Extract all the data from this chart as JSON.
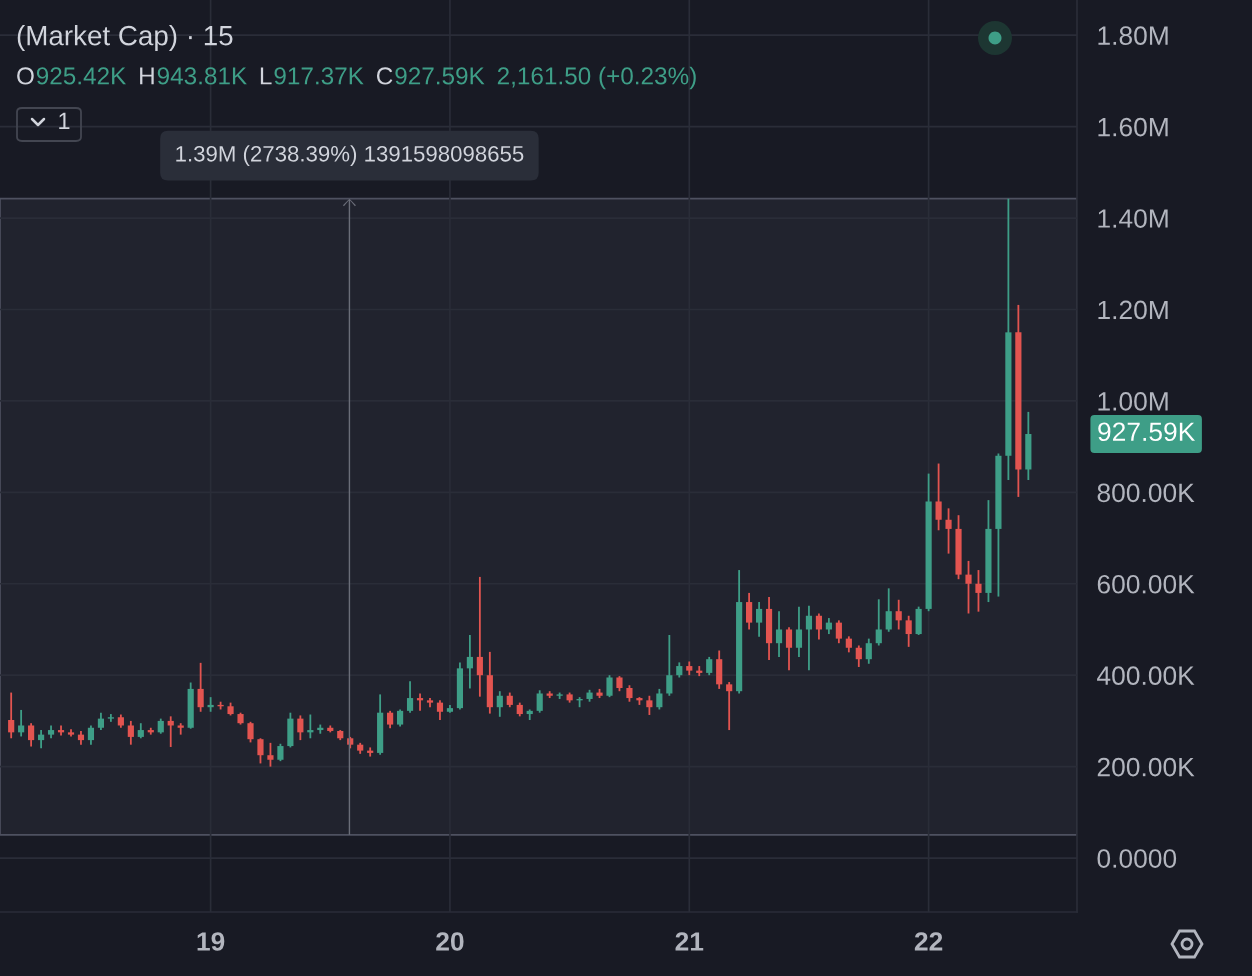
{
  "chart_data": {
    "type": "candlestick",
    "title": "(Market Cap) · 15",
    "x": [
      18.1667,
      18.2083,
      18.25,
      18.2917,
      18.3333,
      18.375,
      18.4167,
      18.4583,
      18.5,
      18.5417,
      18.5833,
      18.625,
      18.6667,
      18.7083,
      18.75,
      18.7917,
      18.8333,
      18.875,
      18.9167,
      18.9583,
      19,
      19.0417,
      19.0833,
      19.125,
      19.1667,
      19.2083,
      19.25,
      19.2917,
      19.3333,
      19.375,
      19.4167,
      19.4583,
      19.5,
      19.5417,
      19.5833,
      19.625,
      19.6667,
      19.7083,
      19.75,
      19.7917,
      19.8333,
      19.875,
      19.9167,
      19.9583,
      20,
      20.0417,
      20.0833,
      20.125,
      20.1667,
      20.2083,
      20.25,
      20.2917,
      20.3333,
      20.375,
      20.4167,
      20.4583,
      20.5,
      20.5417,
      20.5833,
      20.625,
      20.6667,
      20.7083,
      20.75,
      20.7917,
      20.8333,
      20.875,
      20.9167,
      20.9583,
      21,
      21.0417,
      21.0833,
      21.125,
      21.1667,
      21.2083,
      21.25,
      21.2917,
      21.3333,
      21.375,
      21.4167,
      21.4583,
      21.5,
      21.5417,
      21.5833,
      21.625,
      21.6667,
      21.7083,
      21.75,
      21.7917,
      21.8333,
      21.875,
      21.9167,
      21.9583,
      22,
      22.0417,
      22.0833,
      22.125,
      22.1667,
      22.2083,
      22.25,
      22.2917,
      22.3333,
      22.375,
      22.4167
    ],
    "ohlc": [
      [
        302000,
        362000,
        262000,
        275000
      ],
      [
        275000,
        324000,
        266000,
        290000
      ],
      [
        290000,
        295000,
        244000,
        258000
      ],
      [
        258000,
        280000,
        240000,
        270000
      ],
      [
        270000,
        290000,
        262000,
        280000
      ],
      [
        280000,
        290000,
        268000,
        275000
      ],
      [
        275000,
        282000,
        266000,
        270000
      ],
      [
        270000,
        278000,
        248000,
        258000
      ],
      [
        258000,
        290000,
        248000,
        285000
      ],
      [
        285000,
        318000,
        280000,
        305000
      ],
      [
        305000,
        315000,
        298000,
        308000
      ],
      [
        308000,
        314000,
        285000,
        290000
      ],
      [
        290000,
        300000,
        248000,
        265000
      ],
      [
        265000,
        295000,
        262000,
        280000
      ],
      [
        280000,
        285000,
        270000,
        275000
      ],
      [
        275000,
        305000,
        272000,
        300000
      ],
      [
        300000,
        310000,
        243000,
        290000
      ],
      [
        290000,
        295000,
        270000,
        285000
      ],
      [
        285000,
        384000,
        283000,
        370000
      ],
      [
        370000,
        427000,
        320000,
        330000
      ],
      [
        330000,
        352000,
        320000,
        335000
      ],
      [
        335000,
        342000,
        325000,
        332000
      ],
      [
        332000,
        340000,
        312000,
        315000
      ],
      [
        315000,
        318000,
        292000,
        295000
      ],
      [
        295000,
        298000,
        253000,
        260000
      ],
      [
        260000,
        262000,
        207000,
        225000
      ],
      [
        225000,
        252000,
        200000,
        215000
      ],
      [
        215000,
        250000,
        212000,
        245000
      ],
      [
        245000,
        318000,
        242000,
        305000
      ],
      [
        305000,
        312000,
        258000,
        275000
      ],
      [
        275000,
        314000,
        262000,
        280000
      ],
      [
        280000,
        292000,
        272000,
        285000
      ],
      [
        285000,
        290000,
        275000,
        278000
      ],
      [
        278000,
        280000,
        258000,
        262000
      ],
      [
        262000,
        265000,
        240000,
        248000
      ],
      [
        248000,
        252000,
        228000,
        235000
      ],
      [
        235000,
        242000,
        222000,
        230000
      ],
      [
        230000,
        358000,
        226000,
        318000
      ],
      [
        318000,
        322000,
        284000,
        292000
      ],
      [
        292000,
        325000,
        288000,
        322000
      ],
      [
        322000,
        387000,
        318000,
        350000
      ],
      [
        350000,
        360000,
        322000,
        345000
      ],
      [
        345000,
        350000,
        330000,
        340000
      ],
      [
        340000,
        345000,
        302000,
        320000
      ],
      [
        320000,
        335000,
        318000,
        328000
      ],
      [
        328000,
        428000,
        325000,
        415000
      ],
      [
        415000,
        488000,
        371000,
        440000
      ],
      [
        440000,
        615000,
        353000,
        400000
      ],
      [
        400000,
        451000,
        316000,
        330000
      ],
      [
        330000,
        365000,
        309000,
        355000
      ],
      [
        355000,
        362000,
        330000,
        335000
      ],
      [
        335000,
        340000,
        310000,
        315000
      ],
      [
        315000,
        325000,
        302000,
        322000
      ],
      [
        322000,
        367000,
        318000,
        360000
      ],
      [
        360000,
        365000,
        350000,
        355000
      ],
      [
        355000,
        362000,
        348000,
        358000
      ],
      [
        358000,
        362000,
        340000,
        345000
      ],
      [
        345000,
        352000,
        330000,
        348000
      ],
      [
        348000,
        368000,
        342000,
        362000
      ],
      [
        362000,
        370000,
        350000,
        355000
      ],
      [
        355000,
        400000,
        352000,
        395000
      ],
      [
        395000,
        398000,
        365000,
        372000
      ],
      [
        372000,
        378000,
        342000,
        350000
      ],
      [
        350000,
        352000,
        335000,
        345000
      ],
      [
        345000,
        355000,
        313000,
        330000
      ],
      [
        330000,
        370000,
        325000,
        360000
      ],
      [
        360000,
        488000,
        355000,
        400000
      ],
      [
        400000,
        428000,
        395000,
        420000
      ],
      [
        420000,
        430000,
        400000,
        410000
      ],
      [
        410000,
        420000,
        398000,
        405000
      ],
      [
        405000,
        440000,
        400000,
        435000
      ],
      [
        435000,
        454000,
        370000,
        380000
      ],
      [
        380000,
        385000,
        280000,
        365000
      ],
      [
        365000,
        630000,
        360000,
        560000
      ],
      [
        560000,
        580000,
        500000,
        515000
      ],
      [
        515000,
        560000,
        484000,
        545000
      ],
      [
        545000,
        571000,
        433000,
        470000
      ],
      [
        470000,
        540000,
        440000,
        500000
      ],
      [
        500000,
        505000,
        411000,
        460000
      ],
      [
        460000,
        550000,
        440000,
        500000
      ],
      [
        500000,
        552000,
        411000,
        530000
      ],
      [
        530000,
        535000,
        478000,
        500000
      ],
      [
        500000,
        525000,
        490000,
        515000
      ],
      [
        515000,
        520000,
        470000,
        480000
      ],
      [
        480000,
        485000,
        450000,
        460000
      ],
      [
        460000,
        465000,
        418000,
        435000
      ],
      [
        435000,
        480000,
        425000,
        470000
      ],
      [
        470000,
        566000,
        465000,
        500000
      ],
      [
        500000,
        590000,
        495000,
        540000
      ],
      [
        540000,
        565000,
        500000,
        520000
      ],
      [
        520000,
        530000,
        462000,
        490000
      ],
      [
        490000,
        550000,
        488000,
        545000
      ],
      [
        545000,
        841000,
        540000,
        780000
      ],
      [
        780000,
        863000,
        717000,
        740000
      ],
      [
        740000,
        765000,
        666000,
        720000
      ],
      [
        720000,
        750000,
        610000,
        620000
      ],
      [
        620000,
        650000,
        535000,
        600000
      ],
      [
        600000,
        630000,
        539000,
        580000
      ],
      [
        580000,
        783000,
        560000,
        720000
      ],
      [
        720000,
        885000,
        572000,
        880000
      ],
      [
        880000,
        1442400,
        827000,
        1150000
      ],
      [
        1150000,
        1210000,
        790000,
        850000
      ],
      [
        850000,
        976000,
        827000,
        927590
      ]
    ],
    "colors": [
      "#e35450",
      "#3e9e87",
      "#e35450",
      "#3e9e87",
      "#3e9e87",
      "#e35450",
      "#e35450",
      "#e35450",
      "#3e9e87",
      "#3e9e87",
      "#3e9e87",
      "#e35450",
      "#e35450",
      "#3e9e87",
      "#e35450",
      "#3e9e87",
      "#e35450",
      "#e35450",
      "#3e9e87",
      "#e35450",
      "#3e9e87",
      "#e35450",
      "#e35450",
      "#e35450",
      "#e35450",
      "#e35450",
      "#e35450",
      "#3e9e87",
      "#3e9e87",
      "#e35450",
      "#3e9e87",
      "#3e9e87",
      "#e35450",
      "#e35450",
      "#e35450",
      "#e35450",
      "#e35450",
      "#3e9e87",
      "#e35450",
      "#3e9e87",
      "#3e9e87",
      "#e35450",
      "#e35450",
      "#e35450",
      "#3e9e87",
      "#3e9e87",
      "#3e9e87",
      "#e35450",
      "#e35450",
      "#3e9e87",
      "#e35450",
      "#e35450",
      "#3e9e87",
      "#3e9e87",
      "#e35450",
      "#3e9e87",
      "#e35450",
      "#3e9e87",
      "#3e9e87",
      "#e35450",
      "#3e9e87",
      "#e35450",
      "#e35450",
      "#e35450",
      "#e35450",
      "#3e9e87",
      "#3e9e87",
      "#3e9e87",
      "#e35450",
      "#e35450",
      "#3e9e87",
      "#e35450",
      "#e35450",
      "#3e9e87",
      "#e35450",
      "#3e9e87",
      "#e35450",
      "#3e9e87",
      "#e35450",
      "#3e9e87",
      "#3e9e87",
      "#e35450",
      "#3e9e87",
      "#e35450",
      "#e35450",
      "#e35450",
      "#3e9e87",
      "#3e9e87",
      "#3e9e87",
      "#e35450",
      "#e35450",
      "#3e9e87",
      "#3e9e87",
      "#e35450",
      "#e35450",
      "#e35450",
      "#e35450",
      "#e35450",
      "#3e9e87",
      "#3e9e87",
      "#3e9e87",
      "#e35450",
      "#3e9e87"
    ],
    "xlim": [
      18.12,
      22.62
    ],
    "ylim": [
      -118000,
      1877000
    ],
    "xticks": [
      19,
      20,
      21,
      22
    ],
    "yticks": [
      {
        "value": 0,
        "label": "0.0000"
      },
      {
        "value": 200000,
        "label": "200.00K"
      },
      {
        "value": 400000,
        "label": "400.00K"
      },
      {
        "value": 600000,
        "label": "600.00K"
      },
      {
        "value": 800000,
        "label": "800.00K"
      },
      {
        "value": 1000000,
        "label": "1.00M"
      },
      {
        "value": 1200000,
        "label": "1.20M"
      },
      {
        "value": 1400000,
        "label": "1.40M"
      },
      {
        "value": 1600000,
        "label": "1.60M"
      },
      {
        "value": 1800000,
        "label": "1.80M"
      }
    ],
    "grid": true,
    "bands": [
      {
        "axis": "y",
        "from": 50800,
        "to": 1442400,
        "color": "#21232e"
      }
    ],
    "annotations": [
      "O",
      "925.42K",
      "H",
      "943.81K",
      "L",
      "917.37K",
      "C",
      "927.59K",
      "2,161.50 (+0.23%)",
      "1",
      "927.59K",
      {
        "text": "1.39M (2738.39%) 1391598098655",
        "x": 19.58,
        "y": 1442400
      }
    ]
  }
}
